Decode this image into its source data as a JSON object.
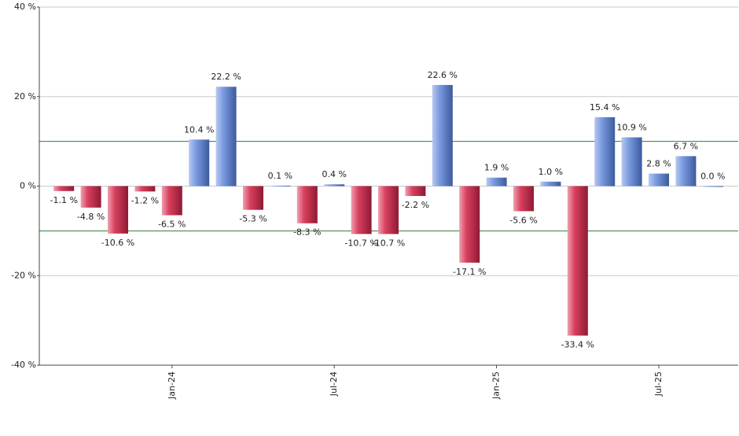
{
  "chart_data": {
    "type": "bar",
    "categories": [
      null,
      null,
      null,
      null,
      "Jan-24",
      null,
      null,
      null,
      null,
      null,
      "Jul-24",
      null,
      null,
      null,
      null,
      null,
      "Jan-25",
      null,
      null,
      null,
      null,
      null,
      "Jul-25",
      null,
      null
    ],
    "values": [
      -1.1,
      -4.8,
      -10.6,
      -1.2,
      -6.5,
      10.4,
      22.2,
      -5.3,
      0.1,
      -8.3,
      0.4,
      -10.7,
      -10.7,
      -2.2,
      22.6,
      -17.1,
      1.9,
      -5.6,
      1.0,
      -33.4,
      15.4,
      10.9,
      2.8,
      6.7,
      0.0
    ],
    "value_labels": [
      "-1.1 %",
      "-4.8 %",
      "-10.6 %",
      "-1.2 %",
      "-6.5 %",
      "10.4 %",
      "22.2 %",
      "-5.3 %",
      "0.1 %",
      "-8.3 %",
      "0.4 %",
      "-10.7 %",
      "-10.7 %",
      "-2.2 %",
      "22.6 %",
      "-17.1 %",
      "1.9 %",
      "-5.6 %",
      "1.0 %",
      "-33.4 %",
      "15.4 %",
      "10.9 %",
      "2.8 %",
      "6.7 %",
      "0.0 %"
    ],
    "positive_color": "#7b9be0",
    "negative_color": "#d8405e",
    "ylim": [
      -40,
      40
    ],
    "yticks": [
      {
        "value": -40,
        "label": "-40 %"
      },
      {
        "value": -20,
        "label": "-20 %"
      },
      {
        "value": 0,
        "label": "0 %"
      },
      {
        "value": 20,
        "label": "20 %"
      },
      {
        "value": 40,
        "label": "40 %"
      }
    ],
    "grid": true,
    "reference_lines": [
      10,
      -10
    ],
    "reference_color": "#2e7d32"
  }
}
